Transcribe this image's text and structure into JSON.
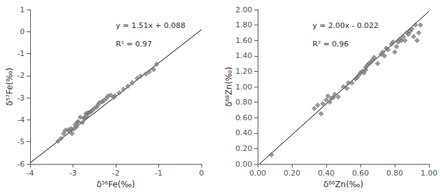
{
  "chart_data": [
    {
      "type": "scatter",
      "x_label": "δ⁵⁶Fe(‰)",
      "y_label": "δ⁵⁷Fe(‰)",
      "xlim": [
        -4,
        0
      ],
      "ylim": [
        -6,
        1
      ],
      "xticks": [
        -4,
        -3,
        -2,
        -1,
        0
      ],
      "yticks": [
        -6,
        -5,
        -4,
        -3,
        -2,
        -1,
        0,
        1
      ],
      "grid": false,
      "annotations": [
        "y = 1.51x + 0.088",
        "R² = 0.97"
      ],
      "series": [
        {
          "type": "line",
          "color": "#000000",
          "line_style": "solid",
          "x": [
            -4,
            0
          ],
          "values": [
            -5.952,
            0.088
          ]
        },
        {
          "type": "scatter",
          "color": "#808080",
          "marker": "diamond",
          "x": [
            -3.35,
            -3.28,
            -3.22,
            -3.18,
            -3.12,
            -3.08,
            -3.05,
            -3.02,
            -2.98,
            -2.95,
            -2.92,
            -2.9,
            -2.88,
            -2.83,
            -2.78,
            -2.75,
            -2.72,
            -2.7,
            -2.68,
            -2.65,
            -2.62,
            -2.58,
            -2.55,
            -2.5,
            -2.45,
            -2.42,
            -2.38,
            -2.32,
            -2.28,
            -2.22,
            -2.18,
            -2.12,
            -2.05,
            -2.02,
            -1.92,
            -1.82,
            -1.72,
            -1.62,
            -1.5,
            -1.42,
            -1.3,
            -1.22,
            -1.12,
            -1.05
          ],
          "values": [
            -4.97,
            -4.85,
            -4.62,
            -4.48,
            -4.45,
            -4.52,
            -4.4,
            -4.62,
            -4.42,
            -4.22,
            -4.32,
            -4.12,
            -4.08,
            -3.88,
            -4.12,
            -3.92,
            -3.92,
            -3.72,
            -3.82,
            -3.68,
            -3.68,
            -3.62,
            -3.58,
            -3.48,
            -3.42,
            -3.32,
            -3.22,
            -3.18,
            -3.12,
            -3.02,
            -2.92,
            -2.88,
            -2.98,
            -2.92,
            -2.78,
            -2.62,
            -2.48,
            -2.32,
            -2.12,
            -2.02,
            -1.92,
            -1.82,
            -1.72,
            -1.48
          ]
        }
      ]
    },
    {
      "type": "scatter",
      "x_label": "δ⁶⁶Zn(‰)",
      "y_label": "δ⁶⁸Zn(‰)",
      "xlim": [
        0,
        1
      ],
      "ylim": [
        0,
        2
      ],
      "xticks": [
        {
          "value": 0,
          "label": "0.00"
        },
        {
          "value": 0.2,
          "label": "0.20"
        },
        {
          "value": 0.4,
          "label": "0.40"
        },
        {
          "value": 0.6,
          "label": "0.60"
        },
        {
          "value": 0.8,
          "label": "0.80"
        },
        {
          "value": 1,
          "label": "1.00"
        }
      ],
      "yticks": [
        {
          "value": 0,
          "label": "0.00"
        },
        {
          "value": 0.2,
          "label": "0.20"
        },
        {
          "value": 0.4,
          "label": "0.40"
        },
        {
          "value": 0.6,
          "label": "0.60"
        },
        {
          "value": 0.8,
          "label": "0.80"
        },
        {
          "value": 1,
          "label": "1.00"
        },
        {
          "value": 1.2,
          "label": "1.20"
        },
        {
          "value": 1.4,
          "label": "1.40"
        },
        {
          "value": 1.6,
          "label": "1.60"
        },
        {
          "value": 1.8,
          "label": "1.80"
        },
        {
          "value": 2,
          "label": "2.00"
        }
      ],
      "grid": false,
      "annotations": [
        "y = 2.00x - 0.022",
        "R² = 0.96"
      ],
      "series": [
        {
          "type": "line",
          "color": "#000000",
          "line_style": "solid",
          "x": [
            0.011,
            1.0
          ],
          "values": [
            0.0,
            1.978
          ]
        },
        {
          "type": "scatter",
          "color": "#808080",
          "marker": "diamond",
          "x": [
            0.08,
            0.33,
            0.35,
            0.37,
            0.38,
            0.4,
            0.41,
            0.42,
            0.43,
            0.44,
            0.45,
            0.47,
            0.5,
            0.52,
            0.53,
            0.55,
            0.57,
            0.58,
            0.59,
            0.6,
            0.61,
            0.62,
            0.63,
            0.63,
            0.64,
            0.65,
            0.66,
            0.67,
            0.68,
            0.7,
            0.72,
            0.73,
            0.74,
            0.75,
            0.76,
            0.78,
            0.79,
            0.8,
            0.81,
            0.82,
            0.83,
            0.84,
            0.85,
            0.86,
            0.87,
            0.88,
            0.89,
            0.9,
            0.91,
            0.92,
            0.93,
            0.94,
            0.95
          ],
          "values": [
            0.12,
            0.72,
            0.76,
            0.65,
            0.78,
            0.83,
            0.88,
            0.8,
            0.85,
            0.86,
            0.9,
            0.87,
            1.0,
            0.98,
            1.05,
            1.05,
            1.1,
            1.12,
            1.15,
            1.18,
            1.2,
            1.18,
            1.25,
            1.22,
            1.28,
            1.3,
            1.32,
            1.35,
            1.38,
            1.3,
            1.42,
            1.45,
            1.4,
            1.5,
            1.48,
            1.55,
            1.58,
            1.45,
            1.52,
            1.58,
            1.62,
            1.6,
            1.65,
            1.6,
            1.7,
            1.68,
            1.72,
            1.75,
            1.65,
            1.8,
            1.6,
            1.7,
            1.8
          ]
        }
      ]
    }
  ]
}
